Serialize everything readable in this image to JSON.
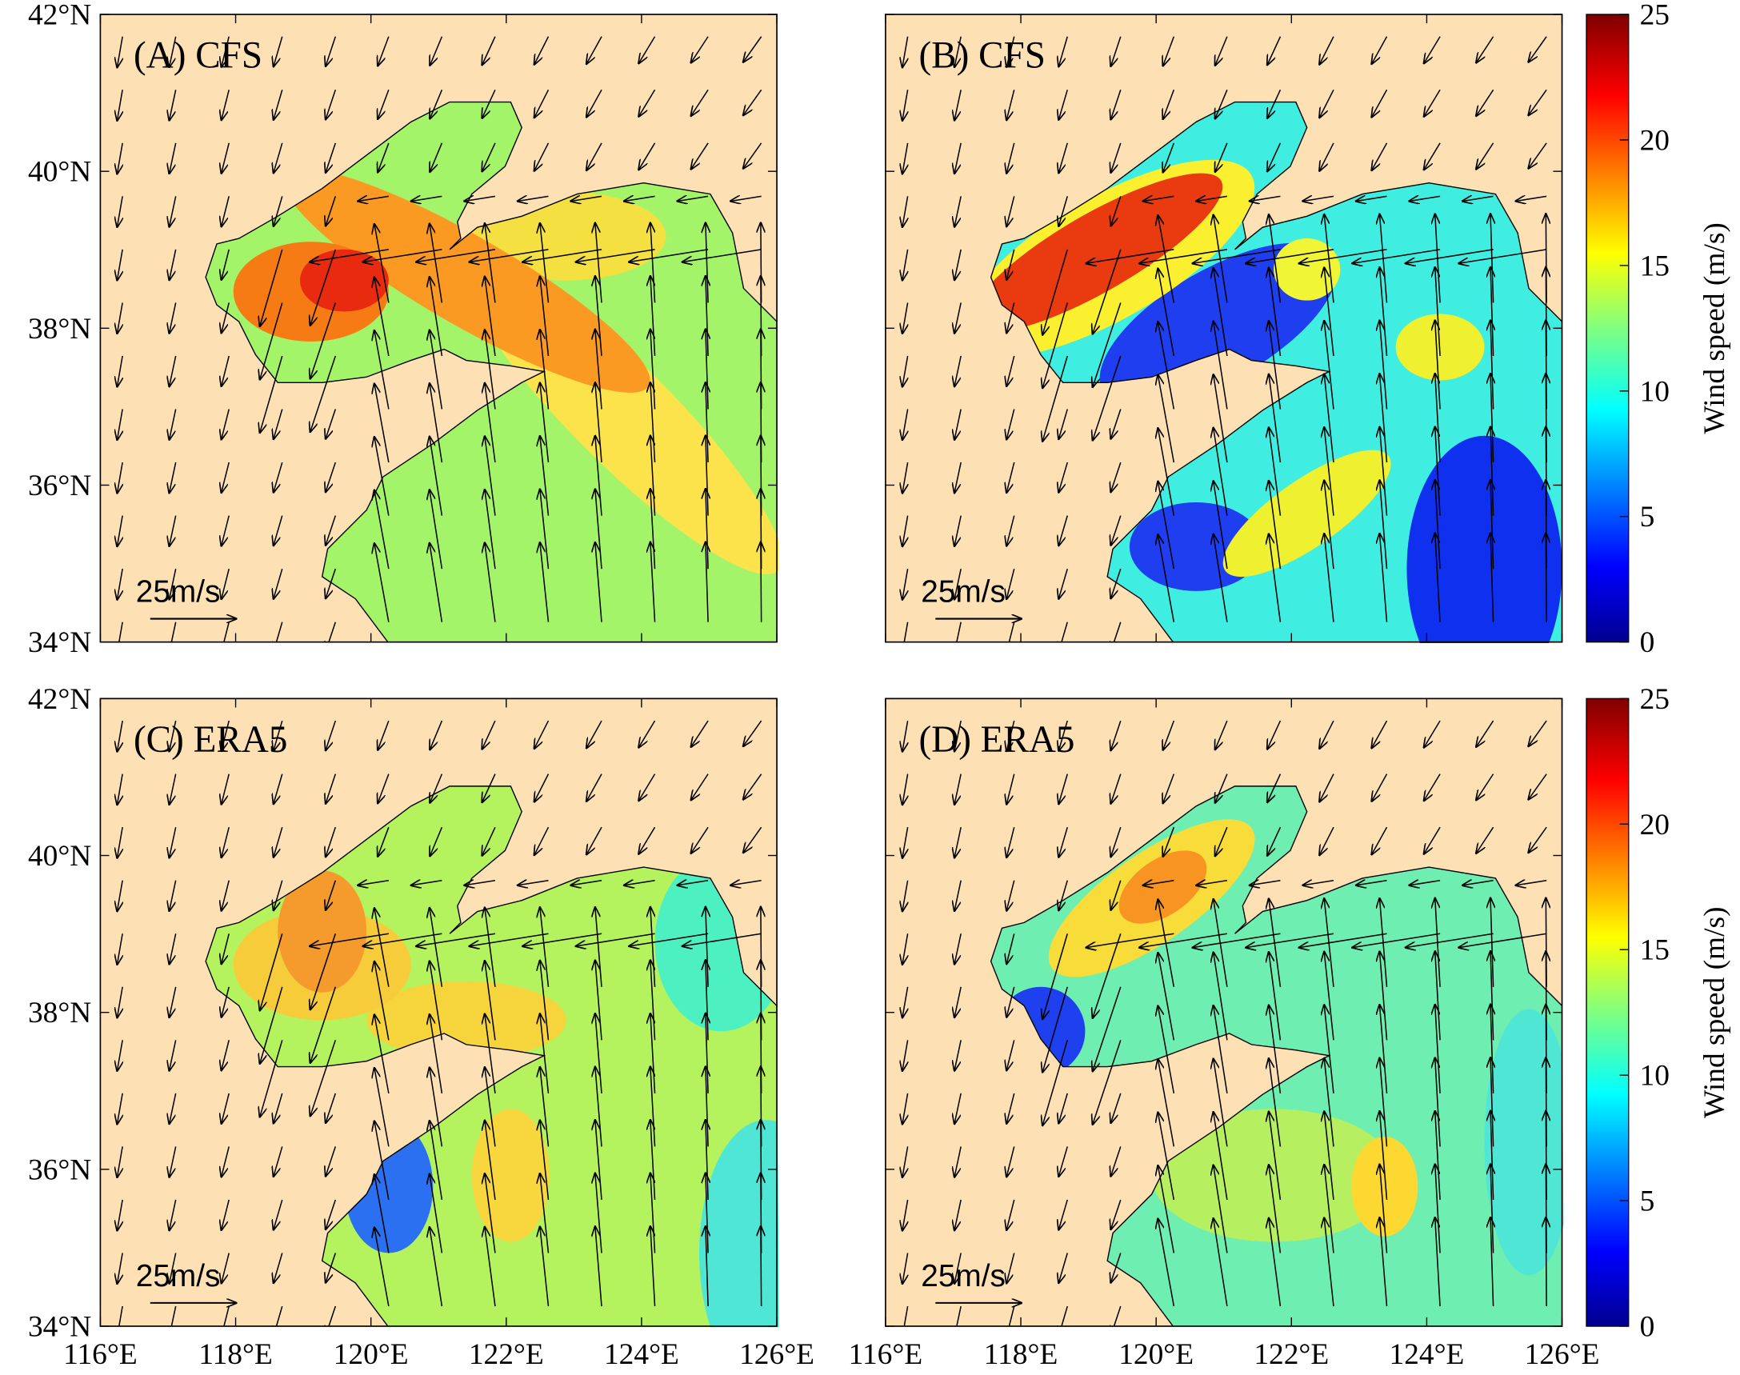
{
  "xlim": [
    116,
    126
  ],
  "ylim": [
    34,
    42
  ],
  "xticks": [
    {
      "value": 116,
      "label": "116°E"
    },
    {
      "value": 118,
      "label": "118°E"
    },
    {
      "value": 120,
      "label": "120°E"
    },
    {
      "value": 122,
      "label": "122°E"
    },
    {
      "value": 124,
      "label": "124°E"
    },
    {
      "value": 126,
      "label": "126°E"
    }
  ],
  "yticks": [
    {
      "value": 34,
      "label": "34°N"
    },
    {
      "value": 36,
      "label": "36°N"
    },
    {
      "value": 38,
      "label": "38°N"
    },
    {
      "value": 40,
      "label": "40°N"
    },
    {
      "value": 42,
      "label": "42°N"
    }
  ],
  "colorbar": {
    "label": "Wind speed (m/s)",
    "lim": [
      0,
      25
    ],
    "ticks": [
      0,
      5,
      10,
      15,
      20,
      25
    ]
  },
  "scale": {
    "value": 25,
    "label": "25m/s"
  },
  "panels": [
    {
      "label": "(A) CFS"
    },
    {
      "label": "(B) CFS"
    },
    {
      "label": "(C) ERA5"
    },
    {
      "label": "(D) ERA5"
    }
  ]
}
